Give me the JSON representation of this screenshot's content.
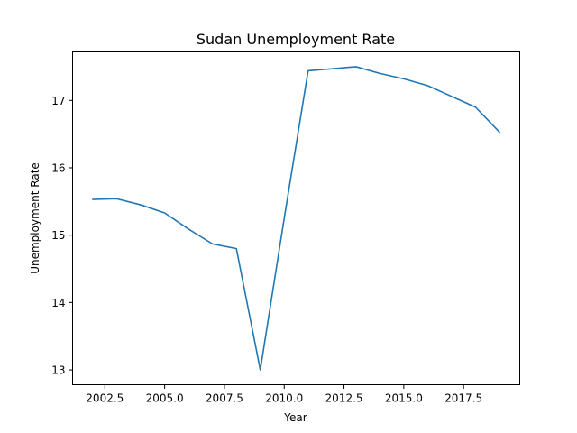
{
  "chart_data": {
    "type": "line",
    "title": "Sudan Unemployment Rate",
    "xlabel": "Year",
    "ylabel": "Unemployment Rate",
    "xlim": [
      2001.15,
      2019.85
    ],
    "ylim": [
      12.78,
      17.72
    ],
    "x_ticks": [
      2002.5,
      2005.0,
      2007.5,
      2010.0,
      2012.5,
      2015.0,
      2017.5
    ],
    "x_tick_labels": [
      "2002.5",
      "2005.0",
      "2007.5",
      "2010.0",
      "2012.5",
      "2015.0",
      "2017.5"
    ],
    "y_ticks": [
      13,
      14,
      15,
      16,
      17
    ],
    "y_tick_labels": [
      "13",
      "14",
      "15",
      "16",
      "17"
    ],
    "grid": false,
    "series": [
      {
        "color": "#1f77b4",
        "x": [
          2002,
          2003,
          2004,
          2005,
          2006,
          2007,
          2008,
          2009,
          2010,
          2011,
          2012,
          2013,
          2014,
          2015,
          2016,
          2017,
          2018,
          2019
        ],
        "y": [
          15.53,
          15.54,
          15.45,
          15.33,
          15.09,
          14.87,
          14.8,
          13.0,
          15.25,
          17.44,
          17.47,
          17.5,
          17.4,
          17.32,
          17.22,
          17.06,
          16.9,
          16.53
        ]
      }
    ]
  }
}
